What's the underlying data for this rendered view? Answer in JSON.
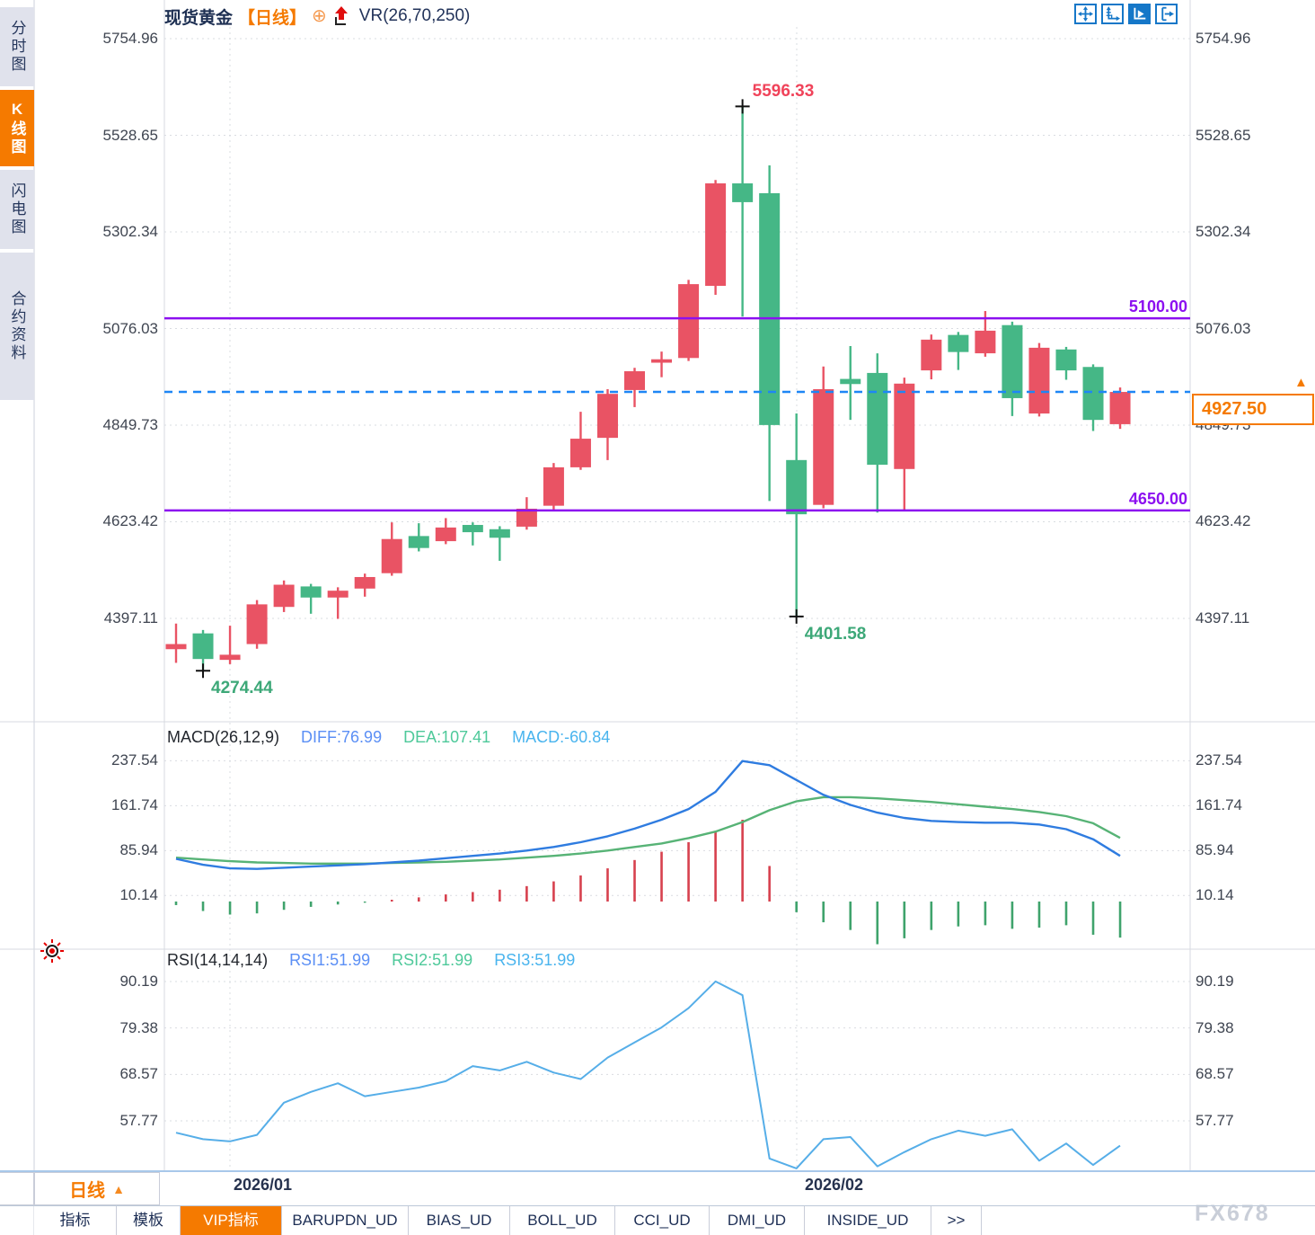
{
  "window": {
    "watermark": "FX678"
  },
  "colors": {
    "up": "#e95364",
    "down": "#45b786",
    "hist_up": "#d7414e",
    "hist_down": "#3fa36c",
    "diff_line": "#2f7ce0",
    "dea_line": "#57b376",
    "rsi_line": "#56aee8",
    "hline_purple": "#8c10f0",
    "last_price_dash": "#1e86f5",
    "accent_orange": "#f57a00",
    "toolbar_blue": "#1577c8",
    "grid": "#d9dce1",
    "axis_text": "#3f4551"
  },
  "sidebar": {
    "tabs": [
      {
        "label": "分时图",
        "active": false
      },
      {
        "label": "K线图",
        "active": true
      },
      {
        "label": "闪电图",
        "active": false
      },
      {
        "label": "合约资料",
        "active": false
      }
    ]
  },
  "title_bar": {
    "symbol": "现货黄金",
    "period_tag": "【日线】",
    "target_icon": "⊕",
    "indicator": "VR(26,70,250)"
  },
  "toolbar": {
    "buttons": [
      {
        "name": "move-crosshair",
        "active": false
      },
      {
        "name": "axis-range",
        "active": false
      },
      {
        "name": "axis-scale",
        "active": true
      },
      {
        "name": "collapse-right",
        "active": false
      }
    ]
  },
  "interval_button": {
    "label": "日线",
    "arrow": "▲"
  },
  "bottom_tabs": [
    {
      "label": "指标",
      "active": false
    },
    {
      "label": "模板",
      "active": false
    },
    {
      "label": "VIP指标",
      "active": true
    },
    {
      "label": "BARUPDN_UD",
      "active": false
    },
    {
      "label": "BIAS_UD",
      "active": false
    },
    {
      "label": "BOLL_UD",
      "active": false
    },
    {
      "label": "CCI_UD",
      "active": false
    },
    {
      "label": "DMI_UD",
      "active": false
    },
    {
      "label": "INSIDE_UD",
      "active": false
    },
    {
      "label": ">>",
      "active": false
    }
  ],
  "chart_data": {
    "type": "candlestick",
    "panels": [
      "price",
      "MACD",
      "RSI"
    ],
    "x_labels": [
      "2026/01",
      "2026/02"
    ],
    "price_axis": {
      "v_top": 5754.96,
      "v_bottom": 4397.11,
      "ticks": [
        {
          "label": "5754.96",
          "value": 5754.96
        },
        {
          "label": "5528.65",
          "value": 5528.65
        },
        {
          "label": "5302.34",
          "value": 5302.34
        },
        {
          "label": "5076.03",
          "value": 5076.03
        },
        {
          "label": "4849.73",
          "value": 4849.73
        },
        {
          "label": "4623.42",
          "value": 4623.42
        },
        {
          "label": "4397.11",
          "value": 4397.11
        }
      ]
    },
    "candles": [
      [
        4325,
        4385,
        4293,
        4337
      ],
      [
        4362,
        4370,
        4274.44,
        4302
      ],
      [
        4300,
        4380,
        4290,
        4312
      ],
      [
        4337,
        4440,
        4326,
        4430
      ],
      [
        4424,
        4486,
        4412,
        4476
      ],
      [
        4472,
        4478,
        4408,
        4446
      ],
      [
        4446,
        4470,
        4396,
        4462
      ],
      [
        4467,
        4502,
        4448,
        4494
      ],
      [
        4503,
        4622,
        4497,
        4583
      ],
      [
        4590,
        4620,
        4554,
        4562
      ],
      [
        4578,
        4632,
        4571,
        4610
      ],
      [
        4616,
        4622,
        4568,
        4599
      ],
      [
        4606,
        4613,
        4532,
        4586
      ],
      [
        4612,
        4681,
        4605,
        4654
      ],
      [
        4661,
        4761,
        4652,
        4751
      ],
      [
        4751,
        4881,
        4745,
        4818
      ],
      [
        4820,
        4934,
        4768,
        4923
      ],
      [
        4932,
        4984,
        4892,
        4976
      ],
      [
        4996,
        5022,
        4962,
        5004
      ],
      [
        5007,
        5190,
        5000,
        5180
      ],
      [
        5176,
        5424,
        5155,
        5416
      ],
      [
        5416,
        5596.33,
        5104,
        5372
      ],
      [
        5393,
        5458,
        4672,
        4850
      ],
      [
        4768,
        4877,
        4401.58,
        4641
      ],
      [
        4663,
        4987,
        4655,
        4934
      ],
      [
        4958,
        5035,
        4862,
        4946
      ],
      [
        4972,
        5018,
        4645,
        4757
      ],
      [
        4747,
        4961,
        4650,
        4947
      ],
      [
        4978,
        5062,
        4957,
        5050
      ],
      [
        5061,
        5068,
        4979,
        5021
      ],
      [
        5018,
        5117,
        5010,
        5071
      ],
      [
        5084,
        5092,
        4871,
        4913
      ],
      [
        4877,
        5042,
        4870,
        5031
      ],
      [
        5027,
        5033,
        4956,
        4978
      ],
      [
        4986,
        4992,
        4836,
        4862
      ],
      [
        4852,
        4938,
        4841,
        4927.5
      ]
    ],
    "horizontal_lines": [
      {
        "value": 5100.0,
        "label": "5100.00",
        "color": "#8c10f0"
      },
      {
        "value": 4650.0,
        "label": "4650.00",
        "color": "#8c10f0"
      }
    ],
    "last_price": {
      "value": 4927.5,
      "label": "4927.50"
    },
    "annotations": [
      {
        "type": "high",
        "text": "5596.33",
        "candle": 21,
        "color": "#f0435a"
      },
      {
        "type": "low",
        "text": "4401.58",
        "candle": 23,
        "color": "#3da878"
      },
      {
        "type": "low",
        "text": "4274.44",
        "candle": 1,
        "color": "#3da878"
      }
    ],
    "macd": {
      "title": "MACD(26,12,9)",
      "readouts": [
        {
          "text": "DIFF:76.99",
          "color": "#5b8ff5"
        },
        {
          "text": "DEA:107.41",
          "color": "#4ec99a"
        },
        {
          "text": "MACD:-60.84",
          "color": "#49b4ee"
        }
      ],
      "ticks": [
        {
          "label": "237.54",
          "value": 237.54
        },
        {
          "label": "161.74",
          "value": 161.74
        },
        {
          "label": "85.94",
          "value": 85.94
        },
        {
          "label": "10.14",
          "value": 10.14
        }
      ],
      "diff": [
        72,
        62,
        56,
        55,
        57,
        59,
        61,
        63,
        66,
        69,
        73,
        77,
        81,
        86,
        92,
        100,
        110,
        123,
        138,
        156,
        185,
        237,
        230,
        205,
        180,
        163,
        150,
        141,
        136,
        134,
        133,
        133,
        130,
        122,
        105,
        76.99
      ],
      "dea": [
        74,
        71,
        68,
        66,
        65,
        64,
        64,
        64,
        65,
        66,
        67,
        69,
        71,
        74,
        77,
        81,
        86,
        92,
        98,
        107,
        118,
        134,
        154,
        169,
        176,
        176,
        174,
        171,
        168,
        164,
        160,
        156,
        151,
        144,
        132,
        107.41
      ],
      "hist": [
        -6,
        -16,
        -22,
        -20,
        -14,
        -9,
        -5,
        -2,
        3,
        7,
        12,
        16,
        20,
        26,
        34,
        44,
        56,
        70,
        84,
        100,
        117,
        138,
        60,
        -18,
        -35,
        -48,
        -72,
        -62,
        -48,
        -42,
        -40,
        -46,
        -44,
        -40,
        -56,
        -60.84
      ]
    },
    "rsi": {
      "title": "RSI(14,14,14)",
      "readouts": [
        {
          "text": "RSI1:51.99",
          "color": "#5b8ff5"
        },
        {
          "text": "RSI2:51.99",
          "color": "#4ec99a"
        },
        {
          "text": "RSI3:51.99",
          "color": "#49b4ee"
        }
      ],
      "ticks": [
        {
          "label": "90.19",
          "value": 90.19
        },
        {
          "label": "79.38",
          "value": 79.38
        },
        {
          "label": "68.57",
          "value": 68.57
        },
        {
          "label": "57.77",
          "value": 57.77
        }
      ],
      "values": [
        55,
        53.5,
        53,
        54.5,
        62,
        64.5,
        66.5,
        63.5,
        64.5,
        65.5,
        67,
        70.5,
        69.5,
        71.5,
        69,
        67.5,
        72.5,
        76,
        79.5,
        84,
        90.19,
        87,
        49,
        46.7,
        53.5,
        54,
        47.2,
        50.5,
        53.5,
        55.5,
        54.3,
        55.8,
        48.5,
        52.5,
        47.5,
        51.99
      ]
    }
  }
}
